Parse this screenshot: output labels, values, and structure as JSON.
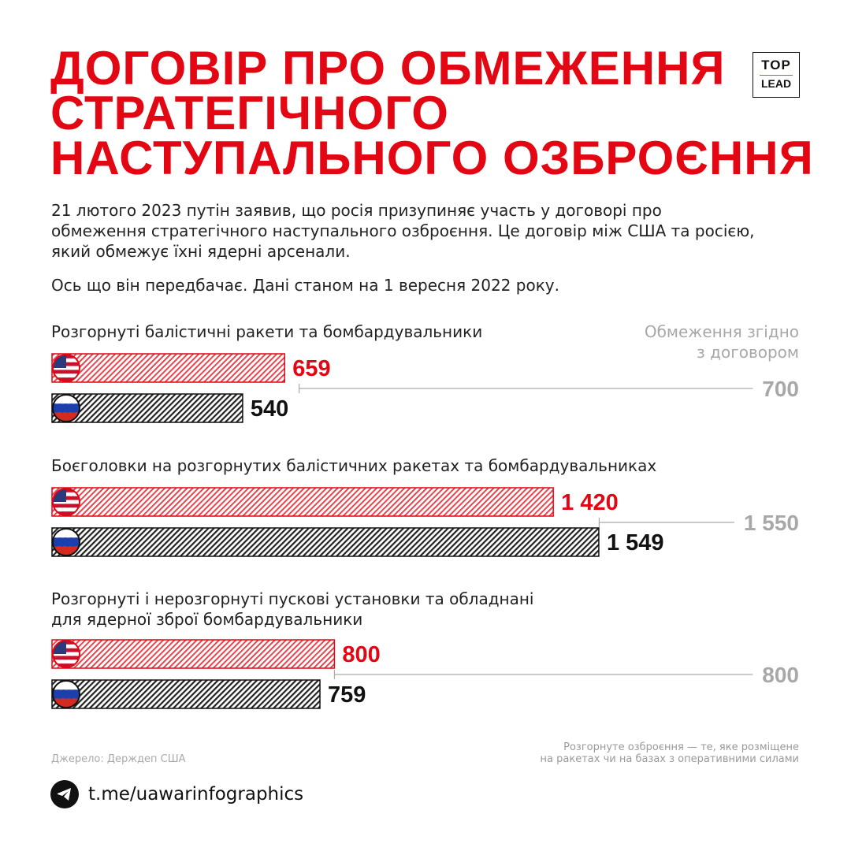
{
  "title": [
    "ДОГОВІР ПРО ОБМЕЖЕННЯ",
    "СТРАТЕГІЧНОГО",
    "НАСТУПАЛЬНОГО ОЗБРОЄННЯ"
  ],
  "logo": {
    "top": "TOP",
    "bottom": "LEAD"
  },
  "intro": [
    "21 лютого 2023 путін заявив, що росія призупиняє участь у договорі про обмеження стратегічного наступального озброєння. Це договір між США та росією, який обмежує їхні ядерні арсенали.",
    "Ось що він передбачає. Дані станом на 1 вересня 2022 року."
  ],
  "limit_header": [
    "Обмеження згідно",
    "з договором"
  ],
  "colors": {
    "usa": "#e30613",
    "russia": "#111111",
    "limit": "#a8a8a8"
  },
  "chart_data": {
    "type": "bar",
    "orientation": "horizontal",
    "series_names": [
      "США",
      "росія"
    ],
    "groups": [
      {
        "label": [
          "Розгорнуті балістичні ракети та бомбардувальники"
        ],
        "usa": 659,
        "russia": 540,
        "limit": 700,
        "usa_label": "659",
        "russia_label": "540",
        "limit_label": "700"
      },
      {
        "label": [
          "Боєголовки на розгорнутих балістичних ракетах та бомбардувальниках"
        ],
        "usa": 1420,
        "russia": 1549,
        "limit": 1550,
        "usa_label": "1 420",
        "russia_label": "1 549",
        "limit_label": "1 550"
      },
      {
        "label": [
          "Розгорнуті і нерозгорнуті пускові установки та обладнані",
          "для ядерної зброї бомбардувальники"
        ],
        "usa": 800,
        "russia": 759,
        "limit": 800,
        "usa_label": "800",
        "russia_label": "759",
        "limit_label": "800"
      }
    ]
  },
  "footer": {
    "source": "Джерело: Держдеп США",
    "note": [
      "Розгорнуте озброєння — те, яке розміщене",
      "на ракетах чи на базах з оперативними силами"
    ],
    "telegram": "t.me/uawarinfographics"
  }
}
